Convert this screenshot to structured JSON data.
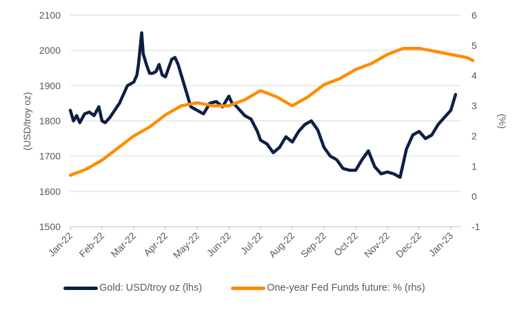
{
  "chart_data": {
    "type": "line",
    "title": "",
    "xlabel": "",
    "ylabel": "(USD/troy oz)",
    "y2label": "(%)",
    "ylim": [
      1500,
      2100
    ],
    "y2lim": [
      -1,
      6
    ],
    "yticks": [
      "1500",
      "1600",
      "1700",
      "1800",
      "1900",
      "2000",
      "2100"
    ],
    "y2ticks": [
      "-1",
      "0",
      "1",
      "2",
      "3",
      "4",
      "5",
      "6"
    ],
    "xticks": [
      "Jan-22",
      "Feb-22",
      "Mar-22",
      "Apr-22",
      "May-22",
      "Jun-22",
      "Jul-22",
      "Aug-22",
      "Sep-22",
      "Oct-22",
      "Nov-22",
      "Dec-22",
      "Jan-23"
    ],
    "grid": true,
    "legend_position": "bottom",
    "series": [
      {
        "name": "Gold: USD/troy oz (lhs)",
        "axis": "left",
        "color": "#0d1f45",
        "x_months": [
          0,
          0.1,
          0.2,
          0.3,
          0.45,
          0.6,
          0.75,
          0.9,
          1.0,
          1.1,
          1.25,
          1.4,
          1.55,
          1.7,
          1.8,
          1.9,
          2.0,
          2.1,
          2.15,
          2.25,
          2.3,
          2.4,
          2.5,
          2.6,
          2.7,
          2.8,
          2.9,
          3.0,
          3.1,
          3.2,
          3.3,
          3.4,
          3.6,
          3.8,
          4.0,
          4.2,
          4.4,
          4.6,
          4.8,
          5.0,
          5.1,
          5.2,
          5.35,
          5.5,
          5.7,
          5.9,
          6.0,
          6.2,
          6.4,
          6.6,
          6.8,
          7.0,
          7.2,
          7.4,
          7.6,
          7.8,
          8.0,
          8.2,
          8.4,
          8.6,
          8.8,
          9.0,
          9.2,
          9.4,
          9.6,
          9.8,
          10.0,
          10.2,
          10.4,
          10.6,
          10.8,
          11.0,
          11.2,
          11.4,
          11.6,
          11.8,
          12.0,
          12.15
        ],
        "values": [
          1830,
          1800,
          1815,
          1795,
          1820,
          1825,
          1815,
          1840,
          1800,
          1795,
          1810,
          1830,
          1850,
          1880,
          1900,
          1905,
          1910,
          1930,
          1960,
          2050,
          1990,
          1960,
          1935,
          1935,
          1940,
          1960,
          1930,
          1925,
          1950,
          1975,
          1980,
          1960,
          1900,
          1840,
          1830,
          1820,
          1850,
          1855,
          1840,
          1870,
          1850,
          1845,
          1830,
          1815,
          1805,
          1770,
          1745,
          1735,
          1710,
          1725,
          1755,
          1740,
          1770,
          1790,
          1800,
          1775,
          1725,
          1700,
          1690,
          1665,
          1660,
          1660,
          1690,
          1715,
          1670,
          1650,
          1655,
          1650,
          1640,
          1720,
          1760,
          1770,
          1750,
          1760,
          1790,
          1810,
          1830,
          1875
        ]
      },
      {
        "name": "One-year Fed Funds future: % (rhs)",
        "axis": "right",
        "color": "#ff8c00",
        "x_months": [
          0,
          0.5,
          1.0,
          1.5,
          2.0,
          2.5,
          3.0,
          3.5,
          4.0,
          4.5,
          5.0,
          5.5,
          6.0,
          6.5,
          7.0,
          7.5,
          8.0,
          8.5,
          9.0,
          9.5,
          10.0,
          10.5,
          11.0,
          11.5,
          12.0,
          12.5,
          12.7
        ],
        "values": [
          0.7,
          0.9,
          1.2,
          1.6,
          2.0,
          2.3,
          2.7,
          3.0,
          3.1,
          3.0,
          3.0,
          3.2,
          3.5,
          3.3,
          3.0,
          3.3,
          3.7,
          3.9,
          4.2,
          4.4,
          4.7,
          4.9,
          4.9,
          4.8,
          4.7,
          4.6,
          4.5
        ]
      }
    ]
  },
  "legend": {
    "items": [
      {
        "label": "Gold: USD/troy oz (lhs)",
        "color": "#0d1f45"
      },
      {
        "label": "One-year Fed Funds future: % (rhs)",
        "color": "#ff8c00"
      }
    ]
  }
}
